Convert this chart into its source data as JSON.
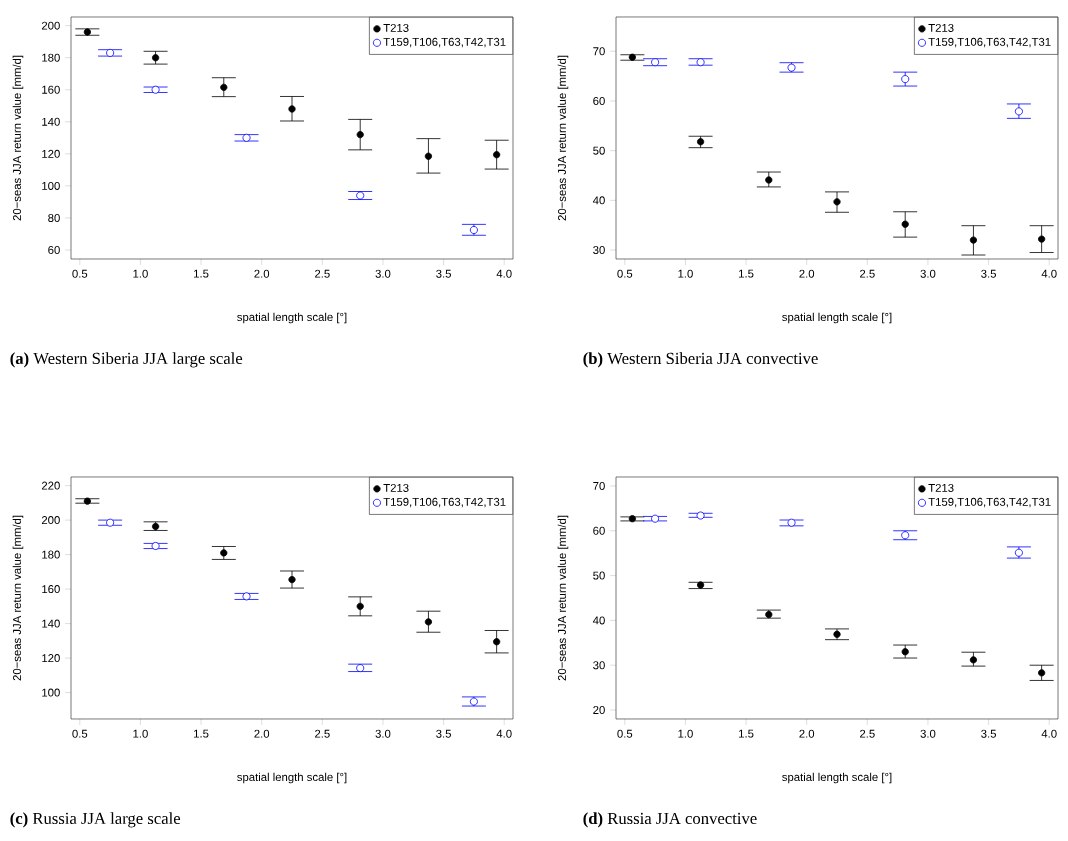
{
  "chart_data": [
    {
      "type": "scatter",
      "title": "**(a)** Western Siberia JJA large scale",
      "xlabel": "spatial length scale [°]",
      "ylabel": "20−seas JJA return value [mm/d]",
      "xlim": [
        0.4275,
        4.0725
      ],
      "ylim": [
        54.4,
        205.4
      ],
      "xticks": [
        0.5,
        {
          "value": 1,
          "label": "1.0"
        },
        1.5,
        {
          "value": 2,
          "label": "2.0"
        },
        2.5,
        {
          "value": 3,
          "label": "3.0"
        },
        3.5,
        {
          "value": 4,
          "label": "4.0"
        }
      ],
      "yticks": [
        60,
        80,
        100,
        120,
        140,
        160,
        180,
        200
      ],
      "legend": "top right",
      "series": [
        {
          "name": "T213",
          "color": "#000000",
          "x": [
            0.5625,
            1.125,
            1.6875,
            2.25,
            2.8125,
            3.375,
            3.9375
          ],
          "values": [
            196,
            180,
            161.5,
            148,
            132,
            118.5,
            119.5
          ],
          "errors": [
            [
              194,
              198
            ],
            [
              176,
              184
            ],
            [
              155.7,
              167.5
            ],
            [
              140.5,
              155.8
            ],
            [
              122.5,
              141.5
            ],
            [
              108,
              129.5
            ],
            [
              110.5,
              128.5
            ]
          ]
        },
        {
          "name": "T159,T106,T63,T42,T31",
          "color": "#0000ff",
          "x": [
            0.75,
            1.125,
            1.875,
            2.8125,
            3.75
          ],
          "values": [
            183,
            160,
            130,
            94,
            72.5
          ],
          "errors": [
            [
              181,
              185
            ],
            [
              158.3,
              161.7
            ],
            [
              128,
              132
            ],
            [
              91.5,
              96.5
            ],
            [
              69.2,
              76
            ]
          ]
        }
      ]
    },
    {
      "type": "scatter",
      "title": "**(b)** Western Siberia JJA convective",
      "xlabel": "spatial length scale [°]",
      "ylabel": "20−seas JJA return value [mm/d]",
      "xlim": [
        0.4275,
        4.0725
      ],
      "ylim": [
        28.2,
        76.9
      ],
      "xticks": [
        0.5,
        {
          "value": 1,
          "label": "1.0"
        },
        1.5,
        {
          "value": 2,
          "label": "2.0"
        },
        2.5,
        {
          "value": 3,
          "label": "3.0"
        },
        3.5,
        {
          "value": 4,
          "label": "4.0"
        }
      ],
      "yticks": [
        30,
        40,
        50,
        60,
        70
      ],
      "legend": "top right",
      "series": [
        {
          "name": "T213",
          "color": "#000000",
          "x": [
            0.5625,
            1.125,
            1.6875,
            2.25,
            2.8125,
            3.375,
            3.9375
          ],
          "values": [
            68.8,
            51.8,
            44.1,
            39.7,
            35.2,
            32,
            32.2
          ],
          "errors": [
            [
              68.2,
              69.3
            ],
            [
              50.6,
              52.9
            ],
            [
              42.7,
              45.7
            ],
            [
              37.6,
              41.7
            ],
            [
              32.6,
              37.7
            ],
            [
              29,
              34.9
            ],
            [
              29.5,
              34.9
            ]
          ]
        },
        {
          "name": "T159,T106,T63,T42,T31",
          "color": "#0000ff",
          "x": [
            0.75,
            1.125,
            1.875,
            2.8125,
            3.75
          ],
          "values": [
            67.8,
            67.8,
            66.7,
            64.4,
            57.9
          ],
          "errors": [
            [
              67.1,
              68.5
            ],
            [
              67.2,
              68.5
            ],
            [
              65.8,
              67.7
            ],
            [
              63,
              65.8
            ],
            [
              56.5,
              59.4
            ]
          ]
        }
      ]
    },
    {
      "type": "scatter",
      "title": "**(c)** Russia JJA large scale",
      "xlabel": "spatial length scale [°]",
      "ylabel": "20−seas JJA return value [mm/d]",
      "xlim": [
        0.4275,
        4.0725
      ],
      "ylim": [
        84.7,
        225
      ],
      "xticks": [
        0.5,
        {
          "value": 1,
          "label": "1.0"
        },
        1.5,
        {
          "value": 2,
          "label": "2.0"
        },
        2.5,
        {
          "value": 3,
          "label": "3.0"
        },
        3.5,
        {
          "value": 4,
          "label": "4.0"
        }
      ],
      "yticks": [
        100,
        120,
        140,
        160,
        180,
        200,
        220
      ],
      "legend": "top right",
      "series": [
        {
          "name": "T213",
          "color": "#000000",
          "x": [
            0.5625,
            1.125,
            1.6875,
            2.25,
            2.8125,
            3.375,
            3.9375
          ],
          "values": [
            211,
            196.3,
            181,
            165.5,
            150,
            141,
            129.5
          ],
          "errors": [
            [
              209.8,
              212.4
            ],
            [
              194,
              199
            ],
            [
              177.2,
              184.7
            ],
            [
              160.6,
              170.5
            ],
            [
              144.5,
              155.5
            ],
            [
              135,
              147.2
            ],
            [
              123,
              136
            ]
          ]
        },
        {
          "name": "T159,T106,T63,T42,T31",
          "color": "#0000ff",
          "x": [
            0.75,
            1.125,
            1.875,
            2.8125,
            3.75
          ],
          "values": [
            198.5,
            185,
            155.8,
            114.2,
            94.8
          ],
          "errors": [
            [
              197,
              200
            ],
            [
              183.5,
              186.5
            ],
            [
              154,
              157.5
            ],
            [
              112.2,
              116.5
            ],
            [
              92.2,
              97.5
            ]
          ]
        }
      ]
    },
    {
      "type": "scatter",
      "title": "**(d)** Russia JJA convective",
      "xlabel": "spatial length scale [°]",
      "ylabel": "20−seas JJA return value [mm/d]",
      "xlim": [
        0.4275,
        4.0725
      ],
      "ylim": [
        18,
        72
      ],
      "xticks": [
        0.5,
        {
          "value": 1,
          "label": "1.0"
        },
        1.5,
        {
          "value": 2,
          "label": "2.0"
        },
        2.5,
        {
          "value": 3,
          "label": "3.0"
        },
        3.5,
        {
          "value": 4,
          "label": "4.0"
        }
      ],
      "yticks": [
        20,
        30,
        40,
        50,
        60,
        70
      ],
      "legend": "top right",
      "series": [
        {
          "name": "T213",
          "color": "#000000",
          "x": [
            0.5625,
            1.125,
            1.6875,
            2.25,
            2.8125,
            3.375,
            3.9375
          ],
          "values": [
            62.7,
            47.9,
            41.3,
            36.9,
            33,
            31.2,
            28.3
          ],
          "errors": [
            [
              62.2,
              63.1
            ],
            [
              47.1,
              48.5
            ],
            [
              40.5,
              42.3
            ],
            [
              35.7,
              38.1
            ],
            [
              31.6,
              34.5
            ],
            [
              29.8,
              32.9
            ],
            [
              26.6,
              30
            ]
          ]
        },
        {
          "name": "T159,T106,T63,T42,T31",
          "color": "#0000ff",
          "x": [
            0.75,
            1.125,
            1.875,
            2.8125,
            3.75
          ],
          "values": [
            62.7,
            63.4,
            61.8,
            59,
            55.1
          ],
          "errors": [
            [
              62.2,
              63.2
            ],
            [
              63,
              63.9
            ],
            [
              61.1,
              62.4
            ],
            [
              58,
              60
            ],
            [
              53.9,
              56.4
            ]
          ]
        }
      ]
    }
  ]
}
